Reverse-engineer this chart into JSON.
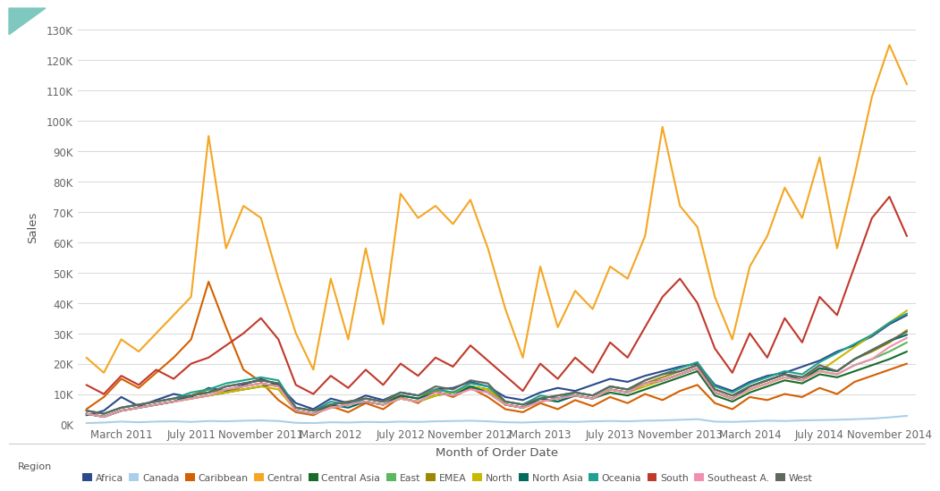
{
  "xlabel": "Month of Order Date",
  "ylabel": "Sales",
  "ylim": [
    0,
    130000
  ],
  "yticks": [
    0,
    10000,
    20000,
    30000,
    40000,
    50000,
    60000,
    70000,
    80000,
    90000,
    100000,
    110000,
    120000,
    130000
  ],
  "ytick_labels": [
    "0K",
    "10K",
    "20K",
    "30K",
    "40K",
    "50K",
    "60K",
    "70K",
    "80K",
    "90K",
    "100K",
    "110K",
    "120K",
    "130K"
  ],
  "background_color": "#ffffff",
  "grid_color": "#d8d8d8",
  "regions": [
    "Africa",
    "Canada",
    "Caribbean",
    "Central",
    "Central Asia",
    "East",
    "EMEA",
    "North",
    "North Asia",
    "Oceania",
    "South",
    "Southeast A.",
    "West"
  ],
  "colors": {
    "Africa": "#2b4a8c",
    "Canada": "#aacfe8",
    "Caribbean": "#d46000",
    "Central": "#f5a623",
    "Central Asia": "#1a6b2a",
    "East": "#5bb85b",
    "EMEA": "#9e8800",
    "North": "#c8b800",
    "North Asia": "#006b5e",
    "Oceania": "#20a090",
    "South": "#c0392b",
    "Southeast A.": "#f090b0",
    "West": "#606860"
  },
  "n_months": 48,
  "xtick_positions": [
    2,
    6,
    10,
    14,
    18,
    22,
    26,
    30,
    34,
    38,
    42,
    46
  ],
  "xtick_labels": [
    "March 2011",
    "July 2011",
    "November 2011",
    "March 2012",
    "July 2012",
    "November 2012",
    "March 2013",
    "July 2013",
    "November 2013",
    "March 2014",
    "July 2014",
    "November 2014"
  ],
  "series": {
    "Africa": [
      3000,
      4500,
      9000,
      6000,
      8000,
      10000,
      9000,
      12000,
      11000,
      13000,
      15000,
      13000,
      7000,
      5000,
      8500,
      7000,
      9500,
      8000,
      10500,
      9500,
      11500,
      12000,
      14000,
      12500,
      9000,
      8000,
      10500,
      12000,
      11000,
      13000,
      15000,
      14000,
      16000,
      17500,
      19000,
      20000,
      13000,
      11000,
      14000,
      16000,
      17000,
      19000,
      21000,
      24000,
      26000,
      29000,
      33000,
      36000
    ],
    "Canada": [
      400,
      600,
      900,
      700,
      900,
      1000,
      800,
      1100,
      1000,
      1200,
      1300,
      1100,
      500,
      400,
      700,
      600,
      800,
      700,
      900,
      800,
      1000,
      1100,
      1200,
      1000,
      700,
      600,
      800,
      900,
      800,
      1000,
      1100,
      1000,
      1200,
      1300,
      1500,
      1700,
      900,
      800,
      1000,
      1200,
      1100,
      1300,
      1400,
      1500,
      1700,
      1900,
      2300,
      2800
    ],
    "Caribbean": [
      5000,
      9000,
      15000,
      12000,
      17000,
      22000,
      28000,
      47000,
      32000,
      18000,
      14000,
      8000,
      4000,
      3000,
      6000,
      4000,
      7000,
      5000,
      9000,
      7000,
      11000,
      9000,
      12000,
      9000,
      5000,
      4000,
      7000,
      5000,
      8000,
      6000,
      9000,
      7000,
      10000,
      8000,
      11000,
      13000,
      7000,
      5000,
      9000,
      8000,
      10000,
      9000,
      12000,
      10000,
      14000,
      16000,
      18000,
      20000
    ],
    "Central": [
      22000,
      17000,
      28000,
      24000,
      30000,
      36000,
      42000,
      95000,
      58000,
      72000,
      68000,
      48000,
      30000,
      18000,
      48000,
      28000,
      58000,
      33000,
      76000,
      68000,
      72000,
      66000,
      74000,
      58000,
      38000,
      22000,
      52000,
      32000,
      44000,
      38000,
      52000,
      48000,
      62000,
      98000,
      72000,
      65000,
      42000,
      28000,
      52000,
      62000,
      78000,
      68000,
      88000,
      58000,
      82000,
      108000,
      125000,
      112000
    ],
    "Central Asia": [
      3500,
      2500,
      4500,
      5500,
      6500,
      7500,
      8500,
      9500,
      10500,
      11500,
      12500,
      13500,
      4500,
      3500,
      5500,
      6500,
      7500,
      6500,
      8500,
      7500,
      9500,
      10500,
      12500,
      11500,
      6500,
      5500,
      7500,
      8500,
      9500,
      8500,
      10500,
      9500,
      11500,
      13500,
      15500,
      17500,
      9500,
      7500,
      10500,
      12500,
      14500,
      13500,
      16500,
      15500,
      17500,
      19500,
      21500,
      24000
    ],
    "East": [
      3500,
      2500,
      4500,
      5500,
      6500,
      7500,
      9500,
      10500,
      11500,
      12500,
      13500,
      12500,
      4500,
      3500,
      5500,
      6500,
      7500,
      6500,
      8500,
      7500,
      9500,
      10500,
      12500,
      11500,
      6500,
      5500,
      8500,
      7500,
      9500,
      8500,
      11500,
      10500,
      13500,
      14500,
      16500,
      18500,
      10500,
      8500,
      11500,
      13500,
      15500,
      14500,
      17500,
      16500,
      19500,
      21500,
      24000,
      27000
    ],
    "EMEA": [
      4500,
      3500,
      5500,
      6500,
      7500,
      8500,
      9500,
      11500,
      10500,
      12500,
      13500,
      12500,
      5500,
      4500,
      6500,
      7500,
      8500,
      7500,
      9500,
      8500,
      11500,
      10500,
      12500,
      11500,
      7500,
      6500,
      8500,
      9500,
      10500,
      9500,
      12500,
      11500,
      13500,
      15500,
      17500,
      19500,
      11500,
      9500,
      12500,
      14500,
      16500,
      15500,
      18500,
      17500,
      21500,
      24000,
      27000,
      31000
    ],
    "North": [
      3500,
      2500,
      4500,
      5500,
      6500,
      7500,
      8500,
      9500,
      10500,
      11500,
      12500,
      11500,
      4500,
      3500,
      5500,
      6500,
      7500,
      6500,
      8500,
      7500,
      9500,
      10500,
      12500,
      11500,
      6500,
      5500,
      7500,
      8500,
      9500,
      8500,
      11500,
      10500,
      12500,
      14500,
      16500,
      18500,
      10500,
      8500,
      11500,
      13500,
      15500,
      14500,
      17500,
      21500,
      25500,
      29500,
      33500,
      37500
    ],
    "North Asia": [
      3500,
      2500,
      4500,
      5500,
      6500,
      7500,
      9500,
      10500,
      12500,
      13500,
      14500,
      13500,
      4500,
      3500,
      6500,
      5500,
      7500,
      6500,
      9500,
      8500,
      10500,
      9500,
      12500,
      10500,
      6500,
      5500,
      8500,
      7500,
      9500,
      8500,
      11500,
      10500,
      13500,
      14500,
      16500,
      18500,
      10500,
      8500,
      12500,
      14500,
      16500,
      14500,
      18500,
      17500,
      21500,
      24500,
      27500,
      29500
    ],
    "Oceania": [
      4500,
      3500,
      5500,
      6500,
      7500,
      8500,
      10500,
      11500,
      13500,
      14500,
      15500,
      14500,
      5500,
      4500,
      7500,
      6500,
      8500,
      7500,
      10500,
      9500,
      11500,
      10500,
      13500,
      12500,
      7500,
      6500,
      9500,
      8500,
      10500,
      9500,
      12500,
      11500,
      14500,
      16500,
      18500,
      20500,
      12500,
      10500,
      13500,
      15500,
      17500,
      16500,
      20500,
      23500,
      26500,
      29500,
      33500,
      36500
    ],
    "South": [
      13000,
      10000,
      16000,
      13000,
      18000,
      15000,
      20000,
      22000,
      26000,
      30000,
      35000,
      28000,
      13000,
      10000,
      16000,
      12000,
      18000,
      13000,
      20000,
      16000,
      22000,
      19000,
      26000,
      21000,
      16000,
      11000,
      20000,
      15000,
      22000,
      17000,
      27000,
      22000,
      32000,
      42000,
      48000,
      40000,
      25000,
      17000,
      30000,
      22000,
      35000,
      27000,
      42000,
      36000,
      52000,
      68000,
      75000,
      62000
    ],
    "Southeast A.": [
      3500,
      2500,
      4500,
      5500,
      6500,
      7500,
      8500,
      9500,
      11500,
      12500,
      13500,
      12500,
      4500,
      3500,
      5500,
      6500,
      7500,
      6500,
      8500,
      7500,
      10500,
      9500,
      11500,
      10500,
      6500,
      5500,
      7500,
      8500,
      9500,
      8500,
      11500,
      10500,
      13500,
      14500,
      16500,
      18500,
      10500,
      8500,
      11500,
      13500,
      15500,
      14500,
      17500,
      16500,
      19500,
      21500,
      25500,
      28500
    ],
    "West": [
      4500,
      3500,
      5500,
      6500,
      7500,
      8500,
      9500,
      10500,
      12500,
      13500,
      14500,
      13500,
      5500,
      4500,
      6500,
      7500,
      8500,
      7500,
      10500,
      9500,
      12500,
      11500,
      14500,
      13500,
      7500,
      6500,
      8500,
      9500,
      10500,
      9500,
      12500,
      11500,
      14500,
      16500,
      17500,
      19500,
      11500,
      9500,
      12500,
      14500,
      16500,
      15500,
      19500,
      17500,
      21500,
      24500,
      27500,
      30500
    ]
  }
}
